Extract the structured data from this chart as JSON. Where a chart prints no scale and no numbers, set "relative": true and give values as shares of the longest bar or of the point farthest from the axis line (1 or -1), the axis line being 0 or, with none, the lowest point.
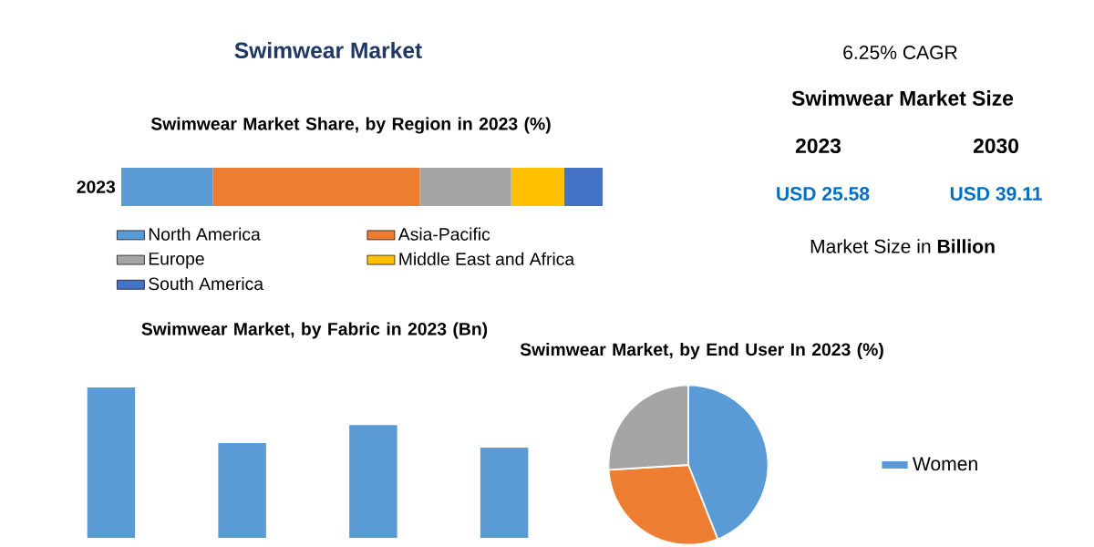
{
  "chart_data": [
    {
      "type": "bar",
      "title": "Swimwear Market",
      "subtitle": "Swimwear Market Share, by Region in 2023 (%)",
      "orientation": "horizontal",
      "stacked": true,
      "relative": true,
      "legend": "bottom",
      "categories": [
        "2023"
      ],
      "series": [
        {
          "name": "North America",
          "color": "#5b9bd5",
          "values": [
            0.19
          ]
        },
        {
          "name": "Asia-Pacific",
          "color": "#ed7d31",
          "values": [
            0.43
          ]
        },
        {
          "name": "Europe",
          "color": "#a5a5a5",
          "values": [
            0.19
          ]
        },
        {
          "name": "Middle East and Africa",
          "color": "#ffc000",
          "values": [
            0.11
          ]
        },
        {
          "name": "South America",
          "color": "#4472c4",
          "values": [
            0.08
          ]
        }
      ]
    },
    {
      "type": "bar",
      "title": "Swimwear Market, by Fabric in 2023 (Bn)",
      "relative": true,
      "categories": [
        null,
        null,
        null,
        null
      ],
      "values": [
        1,
        0.63,
        0.75,
        0.6
      ],
      "color": "#5b9bd5"
    },
    {
      "type": "pie",
      "title": "Swimwear Market, by End User In 2023 (%)",
      "legend": "right",
      "categories": [
        "Women",
        null,
        null
      ],
      "values": [
        44,
        30,
        26
      ],
      "colors": [
        "#5b9bd5",
        "#ed7d31",
        "#a5a5a5"
      ]
    },
    {
      "type": "other",
      "annotations": [
        "6.25% CAGR",
        "Swimwear Market Size",
        "2023",
        "2030",
        "USD 25.58",
        "USD 39.11",
        "Market Size in **Billion**"
      ]
    }
  ]
}
